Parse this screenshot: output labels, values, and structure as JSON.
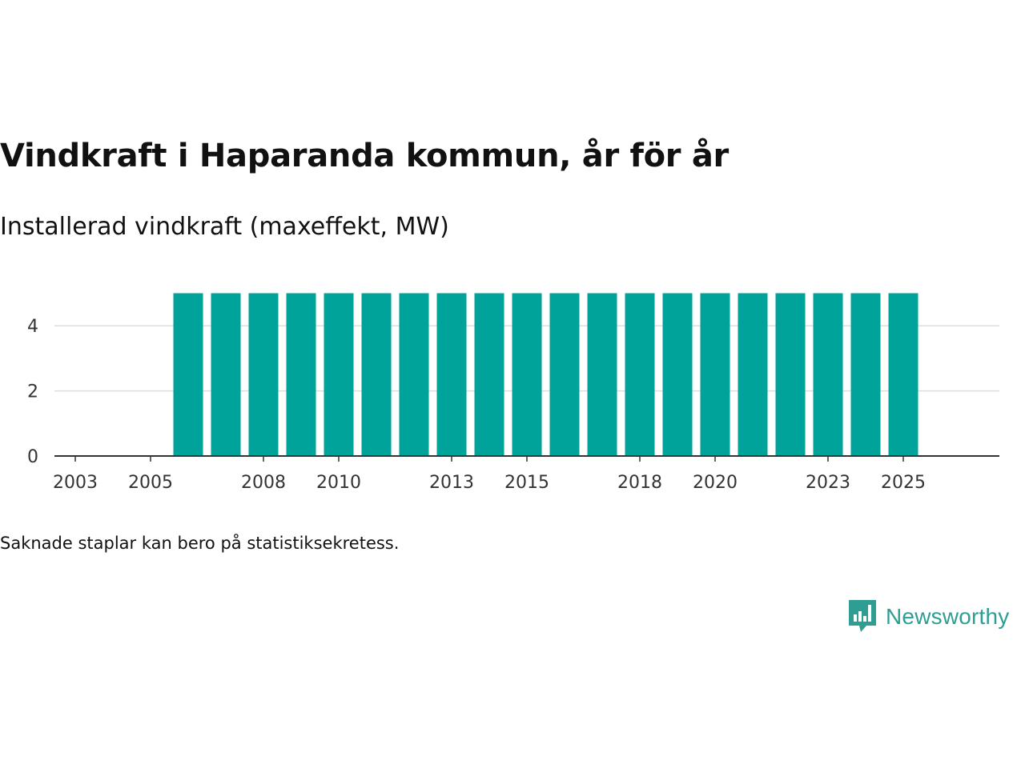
{
  "title": "Vindkraft i Haparanda kommun, år för år",
  "subtitle": "Installerad vindkraft (maxeffekt, MW)",
  "note": "Saknade staplar kan bero på statistiksekretess.",
  "brand": {
    "name": "Newsworthy",
    "logo_icon": "bar-chart-speech-bubble-icon"
  },
  "colors": {
    "bar": "#00a39a",
    "grid": "#dddddd",
    "axis": "#333333",
    "brand": "#2f9e92"
  },
  "chart_data": {
    "type": "bar",
    "title": "Vindkraft i Haparanda kommun, år för år",
    "xlabel": "",
    "ylabel": "Installerad vindkraft (maxeffekt, MW)",
    "categories": [
      "2003",
      "2004",
      "2005",
      "2006",
      "2007",
      "2008",
      "2009",
      "2010",
      "2011",
      "2012",
      "2013",
      "2014",
      "2015",
      "2016",
      "2017",
      "2018",
      "2019",
      "2020",
      "2021",
      "2022",
      "2023",
      "2024",
      "2025"
    ],
    "values": [
      0,
      0,
      0,
      5,
      5,
      5,
      5,
      5,
      5,
      5,
      5,
      5,
      5,
      5,
      5,
      5,
      5,
      5,
      5,
      5,
      5,
      5,
      5
    ],
    "x_tick_labels": [
      "2003",
      "2005",
      "2008",
      "2010",
      "2013",
      "2015",
      "2018",
      "2020",
      "2023",
      "2025"
    ],
    "y_ticks": [
      0,
      2,
      4
    ],
    "ylim": [
      0,
      5.5
    ],
    "grid": true
  }
}
